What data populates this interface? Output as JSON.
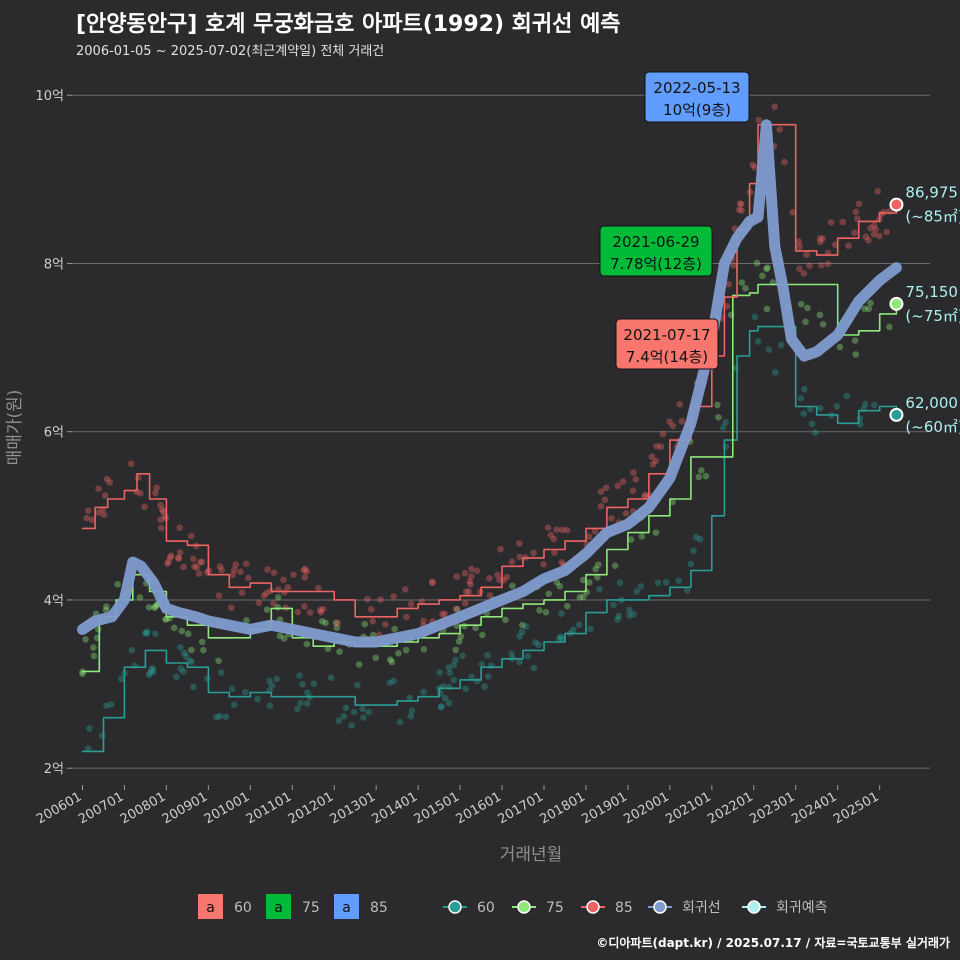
{
  "title": "[안양동안구] 호계 무궁화금호 아파트(1992) 회귀선 예측",
  "subtitle": "2006-01-05 ~ 2025-07-02(최근계약일) 전체 거래건",
  "caption": "©디아파트(dapt.kr) / 2025.07.17 / 자료=국토교통부 실거래가",
  "colors": {
    "background": "#2b2b2d",
    "grid": "#6b6b6b",
    "s60": "#2a9d97",
    "s75": "#8ee87a",
    "s85": "#ee6464",
    "regression": "#7f9bcf",
    "forecast": "#aef0f0",
    "box60": "#f8766d",
    "box75": "#00ba38",
    "box85": "#619cff"
  },
  "chart_data": {
    "type": "line",
    "xlabel": "거래년월",
    "ylabel": "매매가(원)",
    "x_ticks": [
      "200601",
      "200701",
      "200801",
      "200901",
      "201001",
      "201101",
      "201201",
      "201301",
      "201401",
      "201501",
      "201601",
      "201701",
      "201801",
      "201901",
      "202001",
      "202101",
      "202201",
      "202301",
      "202401",
      "202501"
    ],
    "y_ticks": [
      {
        "value": 2,
        "label": "2억"
      },
      {
        "value": 4,
        "label": "4억"
      },
      {
        "value": 6,
        "label": "6억"
      },
      {
        "value": 8,
        "label": "8억"
      },
      {
        "value": 10,
        "label": "10억"
      }
    ],
    "ylim": [
      1.8,
      10.3
    ],
    "grid": true,
    "legend_position": "bottom",
    "legend_box": [
      {
        "letter": "a",
        "label": "60",
        "color_key": "box60"
      },
      {
        "letter": "a",
        "label": "75",
        "color_key": "box75"
      },
      {
        "letter": "a",
        "label": "85",
        "color_key": "box85"
      }
    ],
    "legend_lines": [
      {
        "label": "60",
        "color_key": "s60"
      },
      {
        "label": "75",
        "color_key": "s75"
      },
      {
        "label": "85",
        "color_key": "s85"
      },
      {
        "label": "회귀선",
        "color_key": "regression"
      },
      {
        "label": "회귀예측",
        "color_key": "forecast"
      }
    ],
    "series": [
      {
        "name": "60",
        "color_key": "s60",
        "x": [
          2006.0,
          2006.5,
          2007.0,
          2007.5,
          2008.0,
          2008.5,
          2009.0,
          2009.5,
          2010.0,
          2010.5,
          2011.0,
          2011.5,
          2012.0,
          2012.5,
          2013.0,
          2013.5,
          2014.0,
          2014.5,
          2015.0,
          2015.5,
          2016.0,
          2016.5,
          2017.0,
          2017.5,
          2018.0,
          2018.5,
          2019.0,
          2019.5,
          2020.0,
          2020.5,
          2021.0,
          2021.3,
          2021.6,
          2021.9,
          2022.1,
          2022.3,
          2023.0,
          2023.5,
          2024.0,
          2024.5,
          2025.0,
          2025.4
        ],
        "y": [
          2.2,
          2.6,
          3.2,
          3.4,
          3.25,
          3.2,
          2.9,
          2.85,
          2.9,
          2.85,
          2.85,
          2.85,
          2.85,
          2.75,
          2.75,
          2.8,
          2.85,
          2.95,
          3.05,
          3.2,
          3.3,
          3.4,
          3.5,
          3.6,
          3.85,
          4.0,
          4.0,
          4.05,
          4.15,
          4.35,
          5.0,
          5.9,
          6.9,
          7.2,
          7.25,
          7.25,
          6.3,
          6.2,
          6.1,
          6.25,
          6.3,
          6.2
        ]
      },
      {
        "name": "75",
        "color_key": "s75",
        "x": [
          2006.0,
          2006.4,
          2006.8,
          2007.2,
          2007.6,
          2008.0,
          2008.5,
          2009.0,
          2009.5,
          2010.0,
          2010.5,
          2011.0,
          2011.5,
          2012.0,
          2012.5,
          2013.0,
          2013.5,
          2014.0,
          2014.5,
          2015.0,
          2015.5,
          2016.0,
          2016.5,
          2017.0,
          2017.5,
          2018.0,
          2018.5,
          2019.0,
          2019.5,
          2020.0,
          2020.5,
          2021.0,
          2021.5,
          2021.9,
          2022.1,
          2024.0,
          2024.5,
          2025.0,
          2025.4
        ],
        "y": [
          3.15,
          3.8,
          4.0,
          4.3,
          4.1,
          3.8,
          3.7,
          3.55,
          3.55,
          3.65,
          3.9,
          3.55,
          3.45,
          3.5,
          3.45,
          3.45,
          3.5,
          3.55,
          3.6,
          3.7,
          3.8,
          3.9,
          3.95,
          4.0,
          4.1,
          4.3,
          4.6,
          4.8,
          5.0,
          5.2,
          5.7,
          5.7,
          7.62,
          7.65,
          7.75,
          7.15,
          7.2,
          7.4,
          7.5
        ]
      },
      {
        "name": "85",
        "color_key": "s85",
        "x": [
          2006.0,
          2006.3,
          2006.6,
          2007.0,
          2007.3,
          2007.6,
          2007.8,
          2008.0,
          2008.5,
          2009.0,
          2009.5,
          2010.0,
          2010.5,
          2011.0,
          2011.5,
          2012.0,
          2012.5,
          2013.0,
          2013.5,
          2014.0,
          2014.5,
          2015.0,
          2015.5,
          2016.0,
          2016.5,
          2017.0,
          2017.5,
          2018.0,
          2018.5,
          2019.0,
          2019.5,
          2020.0,
          2020.5,
          2021.0,
          2021.3,
          2021.6,
          2021.9,
          2022.1,
          2022.3,
          2022.6,
          2023.0,
          2023.5,
          2024.0,
          2024.5,
          2025.0,
          2025.4
        ],
        "y": [
          4.85,
          5.1,
          5.2,
          5.3,
          5.5,
          5.2,
          5.2,
          4.7,
          4.65,
          4.3,
          4.15,
          4.2,
          4.1,
          4.1,
          4.1,
          4.0,
          3.8,
          3.8,
          3.9,
          3.95,
          4.0,
          4.05,
          4.15,
          4.4,
          4.5,
          4.6,
          4.7,
          4.85,
          5.1,
          5.2,
          5.5,
          5.9,
          6.3,
          6.9,
          7.6,
          8.4,
          8.95,
          9.65,
          9.65,
          9.65,
          8.15,
          8.1,
          8.3,
          8.5,
          8.6,
          8.7
        ]
      },
      {
        "name": "회귀선",
        "color_key": "regression",
        "x": [
          2006.0,
          2006.3,
          2006.7,
          2007.0,
          2007.2,
          2007.4,
          2007.7,
          2008.0,
          2008.3,
          2008.7,
          2009.0,
          2009.5,
          2010.0,
          2010.5,
          2011.0,
          2011.5,
          2012.0,
          2012.5,
          2013.0,
          2013.5,
          2014.0,
          2014.5,
          2015.0,
          2015.5,
          2016.0,
          2016.5,
          2017.0,
          2017.5,
          2018.0,
          2018.5,
          2019.0,
          2019.5,
          2020.0,
          2020.5,
          2021.0,
          2021.3,
          2021.6,
          2021.9,
          2022.1,
          2022.3,
          2022.5,
          2022.7,
          2022.9,
          2023.2,
          2023.5,
          2024.0,
          2024.5,
          2025.0,
          2025.4
        ],
        "y": [
          3.65,
          3.75,
          3.8,
          4.0,
          4.45,
          4.4,
          4.2,
          3.9,
          3.85,
          3.8,
          3.75,
          3.7,
          3.65,
          3.7,
          3.65,
          3.6,
          3.55,
          3.5,
          3.5,
          3.55,
          3.6,
          3.7,
          3.8,
          3.9,
          4.0,
          4.1,
          4.25,
          4.35,
          4.55,
          4.8,
          4.9,
          5.1,
          5.45,
          6.1,
          7.1,
          8.0,
          8.3,
          8.5,
          8.55,
          9.65,
          8.2,
          7.7,
          7.1,
          6.9,
          6.95,
          7.15,
          7.55,
          7.8,
          7.95
        ]
      }
    ],
    "scatter_overlay": {
      "note": "individual transactions (semi-transparent points) for each size group",
      "groups": [
        "60",
        "75",
        "85"
      ]
    },
    "end_labels": [
      {
        "series": "85",
        "x": 2025.4,
        "y": 8.7,
        "value": "86,975",
        "sub": "(~85㎡)",
        "color_key": "s85"
      },
      {
        "series": "75",
        "x": 2025.4,
        "y": 7.52,
        "value": "75,150",
        "sub": "(~75㎡)",
        "color_key": "s75"
      },
      {
        "series": "60",
        "x": 2025.4,
        "y": 6.2,
        "value": "62,000",
        "sub": "(~60㎡)",
        "color_key": "s60"
      }
    ],
    "annotations": [
      {
        "line1": "2022-05-13",
        "line2": "10억(9층)",
        "x": 2022.4,
        "y": 10.0,
        "color_key": "box85"
      },
      {
        "line1": "2021-06-29",
        "line2": "7.78억(12층)",
        "x": 2021.5,
        "y": 7.78,
        "color_key": "box75"
      },
      {
        "line1": "2021-07-17",
        "line2": "7.4억(14층)",
        "x": 2021.55,
        "y": 7.4,
        "color_key": "box60"
      }
    ]
  }
}
